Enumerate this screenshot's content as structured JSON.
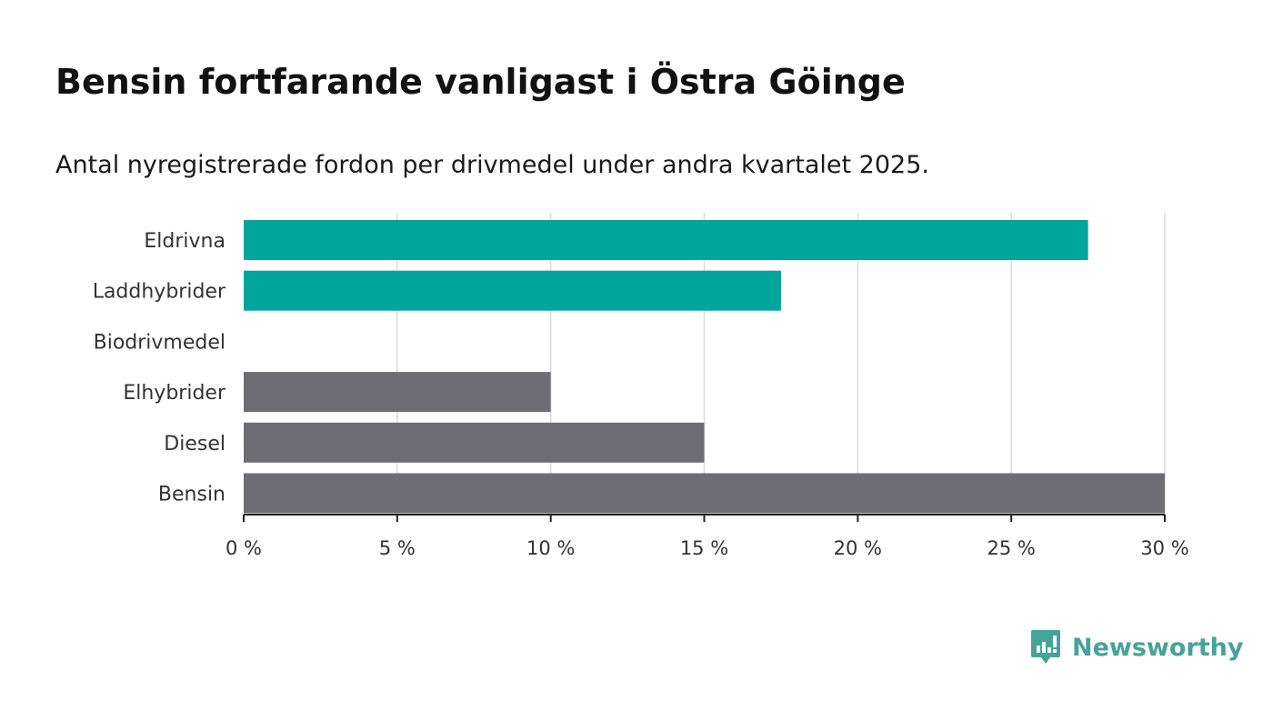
{
  "header": {
    "title": "Bensin fortfarande vanligast i Östra Göinge",
    "subtitle": "Antal nyregistrerade fordon per drivmedel under andra kvartalet 2025."
  },
  "brand": {
    "name": "Newsworthy",
    "icon": "newsworthy-logo-icon",
    "color": "#45a39a"
  },
  "colors": {
    "highlight": "#00a59b",
    "default": "#6e6d74",
    "grid": "#dcdcdc",
    "axis": "#222222"
  },
  "chart_data": {
    "type": "bar",
    "orientation": "horizontal",
    "categories": [
      "Eldrivna",
      "Laddhybrider",
      "Biodrivmedel",
      "Elhybrider",
      "Diesel",
      "Bensin"
    ],
    "values": [
      27.5,
      17.5,
      0,
      10,
      15,
      30
    ],
    "highlight": [
      true,
      true,
      true,
      false,
      false,
      false
    ],
    "xlim": [
      0,
      30
    ],
    "xticks": [
      0,
      5,
      10,
      15,
      20,
      25,
      30
    ],
    "xtick_labels": [
      "0 %",
      "5 %",
      "10 %",
      "15 %",
      "20 %",
      "25 %",
      "30 %"
    ],
    "grid": true,
    "legend": "none"
  }
}
